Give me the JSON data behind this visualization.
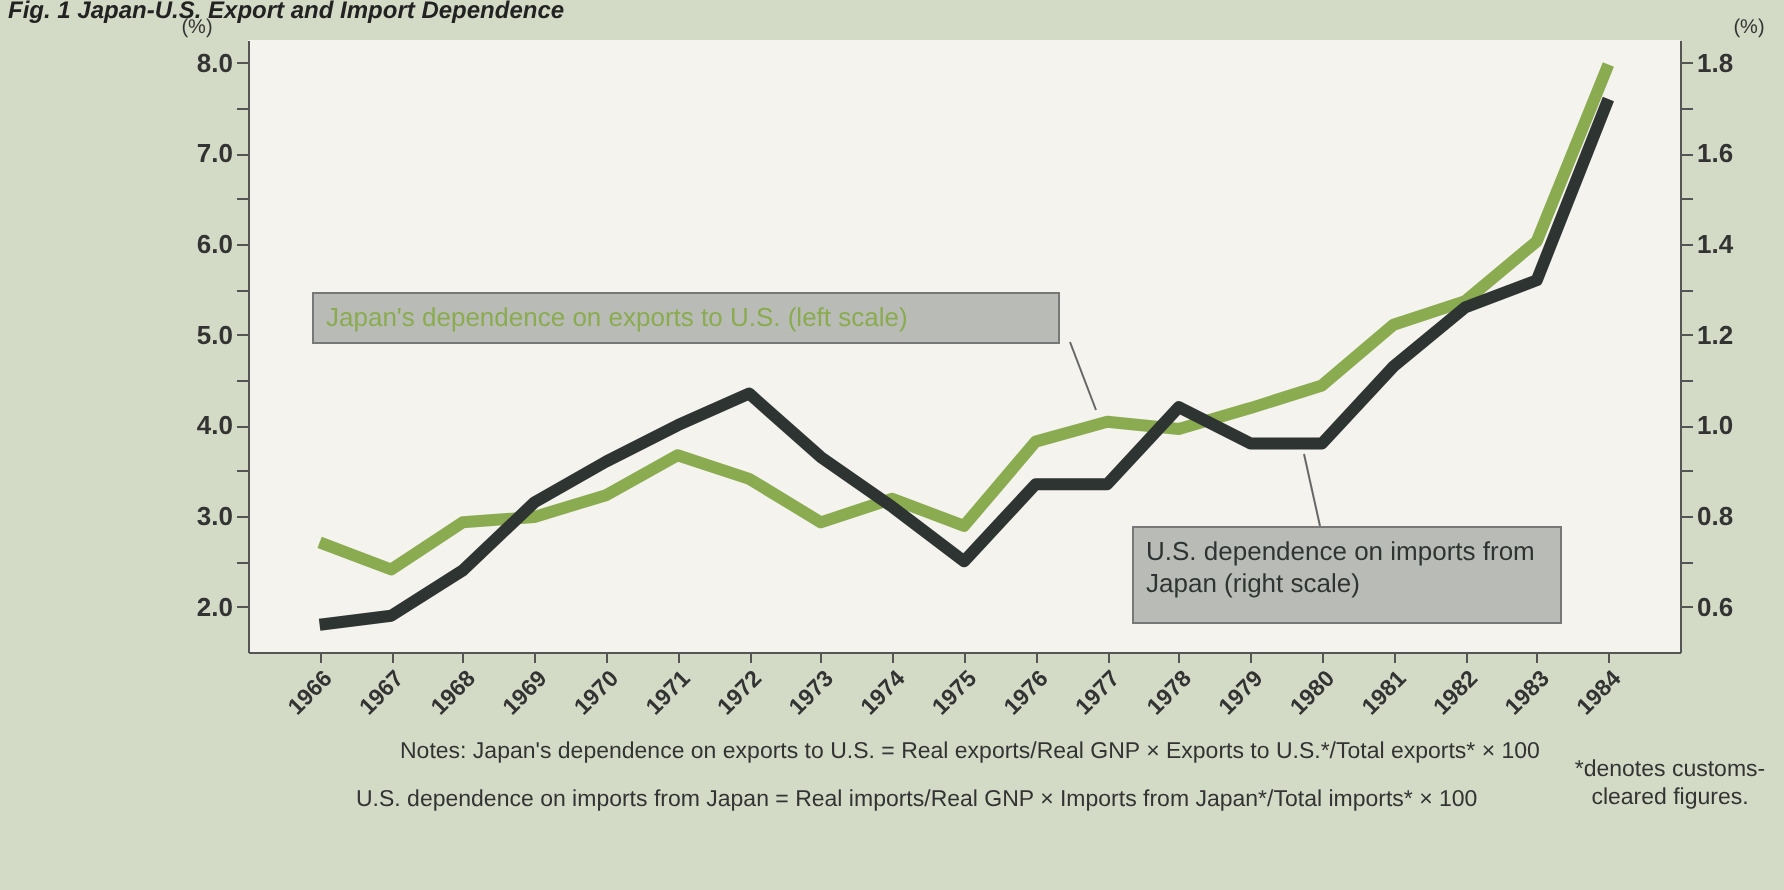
{
  "chart_data": {
    "type": "line",
    "title": "Fig. 1 Japan-U.S. Export and Import Dependence",
    "ylabel": "(%)",
    "y2label": "(%)",
    "categories": [
      "1966",
      "1967",
      "1968",
      "1969",
      "1970",
      "1971",
      "1972",
      "1973",
      "1974",
      "1975",
      "1976",
      "1977",
      "1978",
      "1979",
      "1980",
      "1981",
      "1982",
      "1983",
      "1984"
    ],
    "series": [
      {
        "name": "Japan's dependence on exports to U.S. (left scale)",
        "color": "#8aab50",
        "values": [
          2.71,
          2.41,
          2.93,
          2.99,
          3.23,
          3.67,
          3.41,
          2.93,
          3.19,
          2.89,
          3.82,
          4.04,
          3.96,
          4.19,
          4.44,
          5.11,
          5.37,
          6.03,
          7.98
        ]
      },
      {
        "name": "U.S. dependence on imports from Japan (right scale)",
        "color": "#2e3432",
        "axis": "y2",
        "values": [
          0.56,
          0.58,
          0.68,
          0.83,
          0.92,
          1.0,
          1.07,
          0.93,
          0.82,
          0.7,
          0.87,
          0.87,
          1.04,
          0.96,
          0.96,
          1.13,
          1.26,
          1.32,
          1.72
        ]
      }
    ],
    "ylim": [
      1.5,
      8.25
    ],
    "yticks": [
      {
        "value": 2,
        "label": "2.0"
      },
      {
        "value": 2.5,
        "label": null
      },
      {
        "value": 3,
        "label": "3.0"
      },
      {
        "value": 3.5,
        "label": null
      },
      {
        "value": 4,
        "label": "4.0"
      },
      {
        "value": 4.5,
        "label": null
      },
      {
        "value": 5,
        "label": "5.0"
      },
      {
        "value": 5.5,
        "label": null
      },
      {
        "value": 6,
        "label": "6.0"
      },
      {
        "value": 6.5,
        "label": null
      },
      {
        "value": 7,
        "label": "7.0"
      },
      {
        "value": 7.5,
        "label": null
      },
      {
        "value": 8,
        "label": "8.0"
      }
    ],
    "y2lim": [
      0.5,
      1.85
    ],
    "y2ticks": [
      0.6,
      {
        "value": 0.7,
        "label": null
      },
      0.8,
      {
        "value": 0.9,
        "label": null
      },
      {
        "value": 1,
        "label": "1.0"
      },
      {
        "value": 1.1,
        "label": null
      },
      1.2,
      {
        "value": 1.3,
        "label": null
      },
      1.4,
      {
        "value": 1.5,
        "label": null
      },
      1.6,
      {
        "value": 1.7,
        "label": null
      },
      1.8
    ],
    "line_style": "solid",
    "annotations": [
      "Notes: Japan's dependence on exports to U.S. = Real exports/Real GNP × Exports to U.S.*/Total exports* × 100",
      "U.S. dependence on imports from Japan = Real imports/Real GNP × Imports from Japan*/Total imports* × 100",
      "*denotes customs-cleared figures."
    ]
  }
}
